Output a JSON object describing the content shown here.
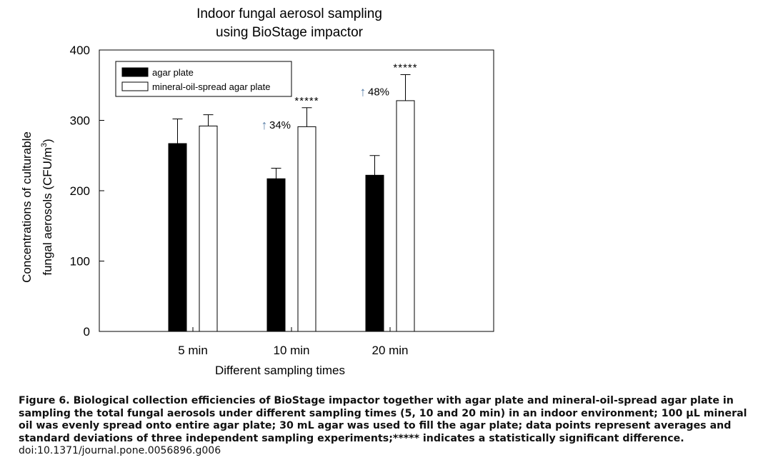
{
  "chart_data": {
    "type": "bar",
    "title": "Indoor fungal aerosol sampling\nusing BioStage impactor",
    "xlabel": "Different sampling times",
    "ylabel_line1": "Concentrations of culturable",
    "ylabel_line2_prefix": "fungal aerosols (CFU/m",
    "ylabel_line2_sup": "3",
    "ylabel_line2_suffix": ")",
    "ylim": [
      0,
      400
    ],
    "yticks": [
      0,
      100,
      200,
      300,
      400
    ],
    "categories": [
      "5 min",
      "10 min",
      "20 min"
    ],
    "series": [
      {
        "name": "agar plate",
        "color": "#000000",
        "values": [
          267,
          217,
          222
        ],
        "errors": [
          35,
          15,
          28
        ]
      },
      {
        "name": "mineral-oil-spread agar plate",
        "color": "#ffffff",
        "values": [
          292,
          291,
          328
        ],
        "errors": [
          16,
          27,
          37
        ]
      }
    ],
    "legend_position": "top-left",
    "grid": false,
    "annotations": [
      {
        "category": "10 min",
        "stars": "*****",
        "percent": "34%",
        "arrow": "↑"
      },
      {
        "category": "20 min",
        "stars": "*****",
        "percent": "48%",
        "arrow": "↑"
      }
    ],
    "arrow_color": "#5b7fa8"
  },
  "caption": {
    "text": "Figure 6. Biological collection efficiencies of BioStage impactor together with agar plate and mineral-oil-spread agar plate in sampling the total fungal aerosols under different sampling times (5, 10 and 20 min) in an indoor environment; 100 μL mineral oil was evenly spread onto entire agar plate; 30 mL agar was used to fill the agar plate; data points represent averages and standard deviations of three independent sampling experiments;***** indicates a statistically significant difference.",
    "doi": "doi:10.1371/journal.pone.0056896.g006"
  }
}
